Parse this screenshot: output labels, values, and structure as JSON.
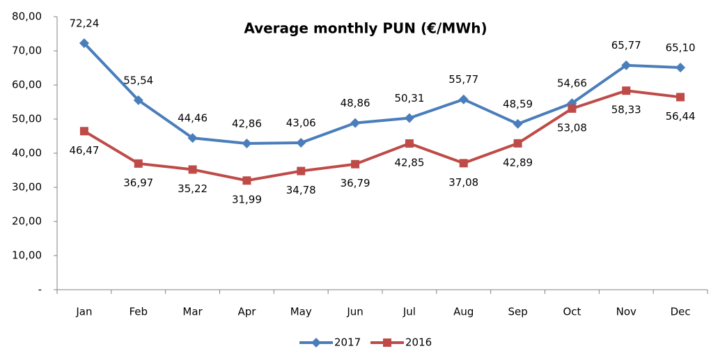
{
  "chart_data": {
    "type": "line",
    "title": "Average monthly PUN (€/MWh)",
    "categories": [
      "Jan",
      "Feb",
      "Mar",
      "Apr",
      "May",
      "Jun",
      "Jul",
      "Aug",
      "Sep",
      "Oct",
      "Nov",
      "Dec"
    ],
    "series": [
      {
        "name": "2017",
        "color": "#4a7ebb",
        "marker": "diamond",
        "values": [
          72.24,
          55.54,
          44.46,
          42.86,
          43.06,
          48.86,
          50.31,
          55.77,
          48.59,
          54.66,
          65.77,
          65.1
        ],
        "value_labels": [
          "72,24",
          "55,54",
          "44,46",
          "42,86",
          "43,06",
          "48,86",
          "50,31",
          "55,77",
          "48,59",
          "54,66",
          "65,77",
          "65,10"
        ]
      },
      {
        "name": "2016",
        "color": "#be4b48",
        "marker": "square",
        "values": [
          46.47,
          36.97,
          35.22,
          31.99,
          34.78,
          36.79,
          42.85,
          37.08,
          42.89,
          53.08,
          58.33,
          56.44
        ],
        "value_labels": [
          "46,47",
          "36,97",
          "35,22",
          "31,99",
          "34,78",
          "36,79",
          "42,85",
          "37,08",
          "42,89",
          "53,08",
          "58,33",
          "56,44"
        ]
      }
    ],
    "ylim": [
      0,
      80
    ],
    "yticks": [
      {
        "value": 0,
        "label": "-"
      },
      {
        "value": 10,
        "label": "10,00"
      },
      {
        "value": 20,
        "label": "20,00"
      },
      {
        "value": 30,
        "label": "30,00"
      },
      {
        "value": 40,
        "label": "40,00"
      },
      {
        "value": 50,
        "label": "50,00"
      },
      {
        "value": 60,
        "label": "60,00"
      },
      {
        "value": 70,
        "label": "70,00"
      },
      {
        "value": 80,
        "label": "80,00"
      }
    ],
    "grid": false,
    "legend": "bottom"
  }
}
